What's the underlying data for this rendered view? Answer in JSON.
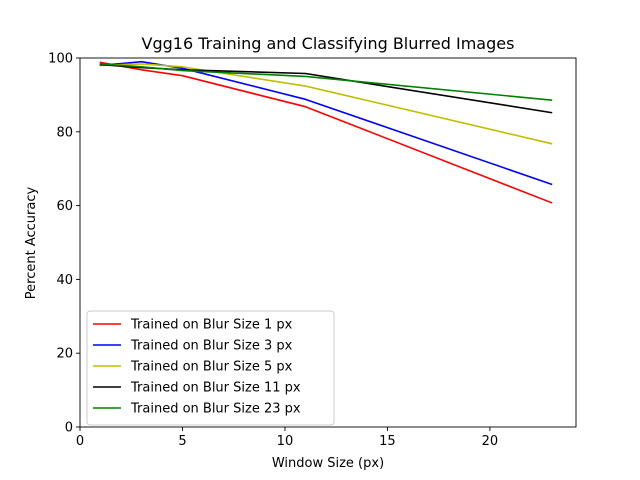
{
  "chart_data": {
    "type": "line",
    "title": "Vgg16 Training and Classifying Blurred Images",
    "xlabel": "Window Size (px)",
    "ylabel": "Percent Accuracy",
    "xlim": [
      0,
      24.2
    ],
    "ylim": [
      0,
      100
    ],
    "xticks": [
      0,
      5,
      10,
      15,
      20
    ],
    "yticks": [
      0,
      20,
      40,
      60,
      80,
      100
    ],
    "grid": false,
    "legend_position": "lower-left",
    "x": [
      1,
      3,
      5,
      11,
      23
    ],
    "series": [
      {
        "name": "Trained on Blur Size 1 px",
        "color": "#ff0000",
        "values": [
          98.8,
          96.8,
          95.2,
          86.8,
          60.8
        ]
      },
      {
        "name": "Trained on Blur Size 3 px",
        "color": "#0000ff",
        "values": [
          98.0,
          99.0,
          97.2,
          88.8,
          65.8
        ]
      },
      {
        "name": "Trained on Blur Size 5 px",
        "color": "#bfbf00",
        "values": [
          98.0,
          98.4,
          97.6,
          92.4,
          76.8
        ]
      },
      {
        "name": "Trained on Blur Size 11 px",
        "color": "#000000",
        "values": [
          98.2,
          97.4,
          96.8,
          95.8,
          85.2
        ]
      },
      {
        "name": "Trained on Blur Size 23 px",
        "color": "#008000",
        "values": [
          98.4,
          97.6,
          96.6,
          95.0,
          88.6
        ]
      }
    ]
  }
}
